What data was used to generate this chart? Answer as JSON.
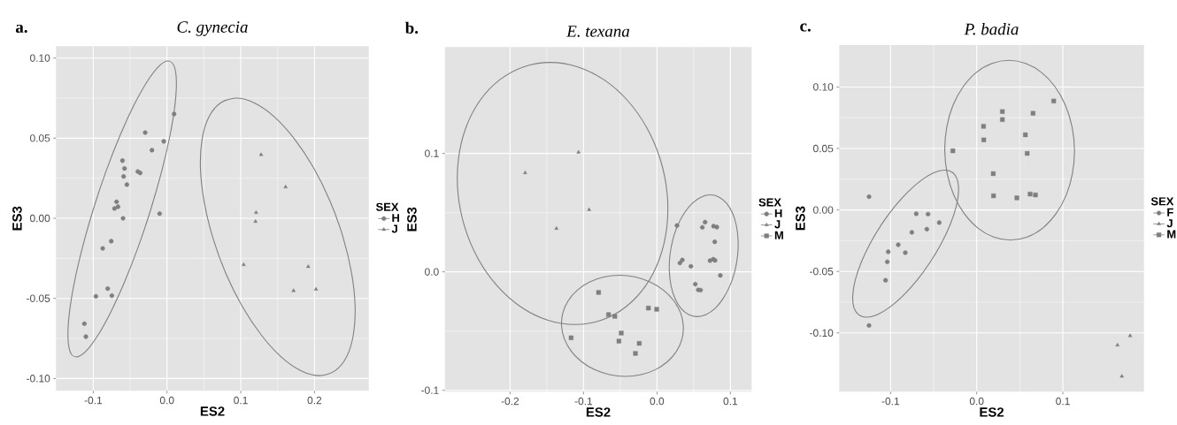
{
  "chart_data": [
    {
      "type": "scatter",
      "title": "C. gynecia",
      "xlabel": "ES2",
      "ylabel": "ES3",
      "legend_title": "SEX",
      "legend": "right",
      "grid": true,
      "annotations": [
        "a."
      ],
      "xlim": [
        -0.1505,
        0.2736
      ],
      "ylim": [
        -0.1077,
        0.1074
      ],
      "xticks": [
        {
          "value": -0.1,
          "label": "-0.1"
        },
        {
          "value": 0,
          "label": "0.0"
        },
        {
          "value": 0.1,
          "label": "0.1"
        },
        {
          "value": 0.2,
          "label": "0.2"
        }
      ],
      "yticks": [
        {
          "value": -0.1,
          "label": "-0.10"
        },
        {
          "value": -0.05,
          "label": "-0.05"
        },
        {
          "value": 0,
          "label": "0.00"
        },
        {
          "value": 0.05,
          "label": "0.05"
        },
        {
          "value": 0.1,
          "label": "0.10"
        }
      ],
      "series": [
        {
          "name": "H",
          "color": "#7f7f7f",
          "marker": "circle",
          "x": [
            0.0096,
            -0.0296,
            -0.0044,
            -0.0204,
            -0.0604,
            -0.0576,
            -0.0588,
            -0.0544,
            -0.0396,
            -0.0364,
            -0.0684,
            -0.0664,
            -0.0712,
            -0.0596,
            -0.01,
            -0.0756,
            -0.0872,
            -0.0804,
            -0.0748,
            -0.0964,
            -0.112,
            -0.11
          ],
          "values": [
            0.0651,
            0.0535,
            0.048,
            0.0425,
            0.036,
            0.0311,
            0.0261,
            0.021,
            0.0292,
            0.0283,
            0.0103,
            0.0072,
            0.0061,
            0.0,
            0.0029,
            -0.0143,
            -0.0188,
            -0.0439,
            -0.0483,
            -0.0487,
            -0.0658,
            -0.0739
          ]
        },
        {
          "name": "J",
          "color": "#7f7f7f",
          "marker": "triangle",
          "x": [
            0.1276,
            0.1208,
            0.12,
            0.104,
            0.1608,
            0.1915,
            0.1716,
            0.202
          ],
          "values": [
            0.0397,
            0.0035,
            -0.002,
            -0.029,
            0.0195,
            -0.0302,
            -0.0452,
            -0.0443
          ]
        }
      ]
    },
    {
      "type": "scatter",
      "title": "E. texana",
      "xlabel": "ES2",
      "ylabel": "ES3",
      "legend_title": "SEX",
      "legend": "right",
      "grid": true,
      "annotations": [
        "b."
      ],
      "xlim": [
        -0.2888,
        0.1289
      ],
      "ylim": [
        -0.1012,
        0.1898
      ],
      "xticks": [
        {
          "value": -0.2,
          "label": "-0.2"
        },
        {
          "value": -0.1,
          "label": "-0.1"
        },
        {
          "value": 0,
          "label": "0.0"
        },
        {
          "value": 0.1,
          "label": "0.1"
        }
      ],
      "yticks": [
        {
          "value": -0.1,
          "label": "-0.1"
        },
        {
          "value": 0,
          "label": "0.0"
        },
        {
          "value": 0.1,
          "label": "0.1"
        }
      ],
      "series": [
        {
          "name": "H",
          "color": "#7f7f7f",
          "marker": "circle",
          "x": [
            0.0273,
            0.0655,
            0.0618,
            0.0771,
            0.0815,
            0.0787,
            0.0313,
            0.0345,
            0.0462,
            0.0723,
            0.0767,
            0.0791,
            0.0863,
            0.0522,
            0.0562,
            0.0594
          ],
          "values": [
            0.0391,
            0.042,
            0.0376,
            0.0386,
            0.0378,
            0.0254,
            0.0075,
            0.01,
            0.0047,
            0.0095,
            0.0107,
            0.0097,
            -0.003,
            -0.0104,
            -0.0152,
            -0.0154
          ]
        },
        {
          "name": "J",
          "color": "#7f7f7f",
          "marker": "triangle",
          "x": [
            -0.1795,
            -0.1068,
            -0.0924,
            -0.1369
          ],
          "values": [
            0.0836,
            0.101,
            0.0525,
            0.0366
          ]
        },
        {
          "name": "M",
          "color": "#7f7f7f",
          "marker": "square",
          "x": [
            -0.0795,
            -0.0659,
            -0.0574,
            -0.0116,
            -0.0004,
            -0.1169,
            -0.0486,
            -0.0518,
            -0.0241,
            -0.0293
          ],
          "values": [
            -0.0174,
            -0.0361,
            -0.0376,
            -0.0306,
            -0.0316,
            -0.0557,
            -0.0517,
            -0.0585,
            -0.0604,
            -0.0689
          ]
        }
      ]
    },
    {
      "type": "scatter",
      "title": "P. badia",
      "xlabel": "ES2",
      "ylabel": "ES3",
      "legend_title": "SEX",
      "legend": "right",
      "grid": true,
      "annotations": [
        "c."
      ],
      "xlim": [
        -0.1596,
        0.1942
      ],
      "ylim": [
        -0.1478,
        0.1341
      ],
      "xticks": [
        {
          "value": -0.1,
          "label": "-0.1"
        },
        {
          "value": 0,
          "label": "0.0"
        },
        {
          "value": 0.1,
          "label": "0.1"
        }
      ],
      "yticks": [
        {
          "value": -0.1,
          "label": "-0.10"
        },
        {
          "value": -0.05,
          "label": "-0.05"
        },
        {
          "value": 0,
          "label": "0.00"
        },
        {
          "value": 0.05,
          "label": "0.05"
        },
        {
          "value": 0.1,
          "label": "0.10"
        }
      ],
      "series": [
        {
          "name": "F",
          "color": "#7f7f7f",
          "marker": "circle",
          "x": [
            -0.125,
            -0.0702,
            -0.0565,
            -0.0435,
            -0.0753,
            -0.0579,
            -0.0911,
            -0.1027,
            -0.0829,
            -0.1038,
            -0.1058,
            -0.125
          ],
          "values": [
            0.0108,
            -0.0031,
            -0.0034,
            -0.0103,
            -0.0182,
            -0.0156,
            -0.0283,
            -0.034,
            -0.0347,
            -0.0422,
            -0.0572,
            -0.0939
          ]
        },
        {
          "name": "J",
          "color": "#7f7f7f",
          "marker": "triangle",
          "x": [
            0.1781,
            0.1634,
            0.1685
          ],
          "values": [
            -0.1023,
            -0.1099,
            -0.1353
          ]
        },
        {
          "name": "M",
          "color": "#7f7f7f",
          "marker": "square",
          "x": [
            0.0894,
            0.0654,
            0.0298,
            0.0298,
            0.0079,
            0.0082,
            0.0565,
            0.0586,
            -0.0277,
            0.0192,
            0.0195,
            0.0466,
            0.062,
            0.0682
          ],
          "values": [
            0.0886,
            0.0786,
            0.08,
            0.0735,
            0.068,
            0.057,
            0.0611,
            0.046,
            0.0481,
            0.0295,
            0.0115,
            0.0098,
            0.0129,
            0.0122
          ]
        }
      ]
    }
  ]
}
